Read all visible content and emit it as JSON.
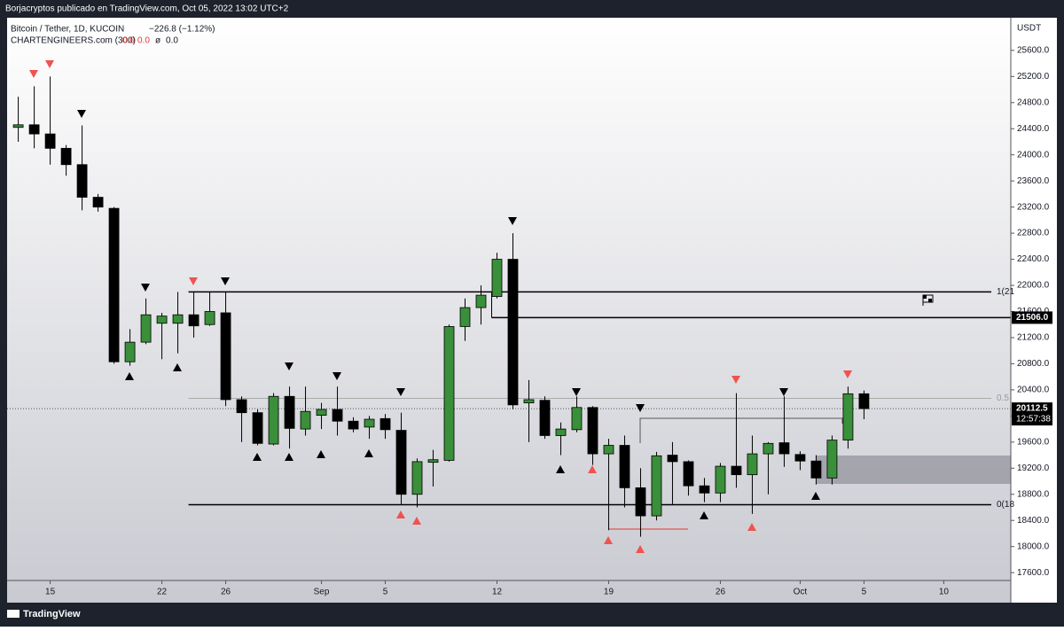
{
  "header": {
    "publisher": "Borjacryptos publicado en TradingView.com, Oct 05, 2022 13:02 UTC+2",
    "brand": "TradingView"
  },
  "chart_data": {
    "type": "candlestick",
    "title": "Bitcoin / Tether, 1D, KUCOIN",
    "change": "−226.8 (−1.12%)",
    "indicator": {
      "name": "CHARTENGINEERS.com (300)",
      "values": [
        "0.0",
        "0.0"
      ],
      "symbol": "ø",
      "extra": "0.0"
    },
    "currency": "USDT",
    "up_color": "#3a8f3a",
    "down_color": "#000000",
    "open": [
      24420,
      24460,
      24320,
      24100,
      23850,
      23350,
      23180,
      20830,
      21130,
      21420,
      21420,
      21550,
      21400,
      21580,
      20250,
      20050,
      19570,
      20300,
      19800,
      20010,
      20100,
      19920,
      19830,
      19960,
      19780,
      18800,
      19290,
      19320,
      21370,
      21660,
      21830,
      22400,
      20200,
      20240,
      19700,
      19790,
      20130,
      19420,
      19550,
      18900,
      18470,
      19400,
      19300,
      18930,
      18820,
      19230,
      19100,
      19420,
      19590,
      19410,
      19310,
      19050,
      19630,
      20340
    ],
    "high": [
      24890,
      25050,
      25200,
      24150,
      24450,
      23400,
      23200,
      21330,
      21800,
      21580,
      21900,
      21900,
      21900,
      21900,
      20300,
      20100,
      20350,
      20450,
      20450,
      20200,
      20450,
      19980,
      20000,
      20030,
      20050,
      19350,
      19480,
      21400,
      21800,
      22000,
      22500,
      22800,
      20550,
      20300,
      19900,
      20300,
      20150,
      19650,
      19700,
      19200,
      19450,
      19600,
      19320,
      19050,
      19280,
      20350,
      19700,
      19600,
      20300,
      19460,
      19400,
      19700,
      20450,
      20390
    ],
    "low": [
      24200,
      24100,
      23850,
      23680,
      23150,
      23130,
      20800,
      20770,
      21100,
      20870,
      20960,
      21200,
      21380,
      20150,
      19600,
      19550,
      19550,
      19500,
      19700,
      19800,
      19700,
      19750,
      19650,
      19650,
      18650,
      18600,
      18920,
      19300,
      21150,
      21400,
      21800,
      20100,
      19600,
      19650,
      19400,
      19750,
      19250,
      18250,
      18600,
      18150,
      18400,
      18650,
      18780,
      18680,
      18680,
      18900,
      18500,
      18800,
      19220,
      19170,
      18950,
      18950,
      19500,
      19950
    ],
    "close": [
      24460,
      24320,
      24100,
      23850,
      23350,
      23200,
      20830,
      21130,
      21550,
      21530,
      21550,
      21380,
      21600,
      20250,
      20050,
      19580,
      20300,
      19810,
      20070,
      20100,
      19920,
      19800,
      19950,
      19790,
      18800,
      19300,
      19330,
      21370,
      21660,
      21850,
      22400,
      20170,
      20250,
      19700,
      19800,
      20130,
      19420,
      19550,
      18900,
      18470,
      19390,
      19300,
      18930,
      18820,
      19230,
      19100,
      19420,
      19580,
      19420,
      19310,
      19050,
      19630,
      20340,
      20112.5
    ],
    "xlim": [
      -0.7,
      62.2
    ],
    "xticks": [
      {
        "value": 2,
        "label": "15"
      },
      {
        "value": 9,
        "label": "22"
      },
      {
        "value": 13,
        "label": "26"
      },
      {
        "value": 19,
        "label": "Sep"
      },
      {
        "value": 23,
        "label": "5"
      },
      {
        "value": 30,
        "label": "12"
      },
      {
        "value": 37,
        "label": "19"
      },
      {
        "value": 44,
        "label": "26"
      },
      {
        "value": 49,
        "label": "Oct"
      },
      {
        "value": 53,
        "label": "5"
      },
      {
        "value": 58,
        "label": "10"
      }
    ],
    "ylim": [
      17480,
      26100
    ],
    "yticks": [
      {
        "value": 17600,
        "label": "17600.0"
      },
      {
        "value": 18000,
        "label": "18000.0"
      },
      {
        "value": 18400,
        "label": "18400.0"
      },
      {
        "value": 18800,
        "label": "18800.0"
      },
      {
        "value": 19200,
        "label": "19200.0"
      },
      {
        "value": 19600,
        "label": "19600.0"
      },
      {
        "value": 20000,
        "label": "20000.0"
      },
      {
        "value": 20400,
        "label": "20400.0"
      },
      {
        "value": 20800,
        "label": "20800.0"
      },
      {
        "value": 21200,
        "label": "21200.0"
      },
      {
        "value": 21600,
        "label": "21600.0"
      },
      {
        "value": 22000,
        "label": "22000.0"
      },
      {
        "value": 22400,
        "label": "22400.0"
      },
      {
        "value": 22800,
        "label": "22800.0"
      },
      {
        "value": 23200,
        "label": "23200.0"
      },
      {
        "value": 23600,
        "label": "23600.0"
      },
      {
        "value": 24000,
        "label": "24000.0"
      },
      {
        "value": 24400,
        "label": "24400.0"
      },
      {
        "value": 24800,
        "label": "24800.0"
      },
      {
        "value": 25200,
        "label": "25200.0"
      },
      {
        "value": 25600,
        "label": "25600.0"
      }
    ],
    "levels": [
      {
        "value": 21900,
        "label": "1(21"
      },
      {
        "value": 18640,
        "label": "0(18"
      },
      {
        "value": 20270,
        "label": "0.5"
      }
    ],
    "marked_level": {
      "value": 21506,
      "label": "21506.0"
    },
    "last_price": 20112.5,
    "countdown": "12:57:38"
  }
}
